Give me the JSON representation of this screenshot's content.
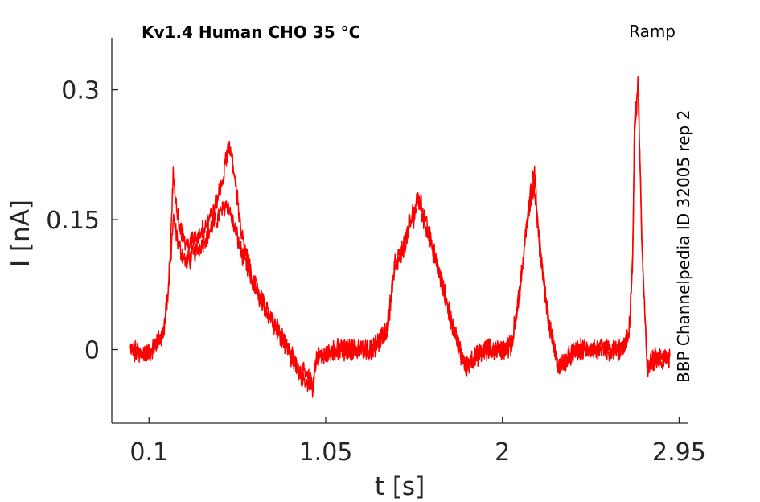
{
  "chart_data": {
    "type": "line",
    "title": "Kv1.4  Human  CHO  35 °C",
    "protocol_label": "Ramp",
    "side_label": "BBP Channelpedia ID 32005 rep 2",
    "xlabel": "t [s]",
    "ylabel": "I [nA]",
    "xlim": [
      -0.1,
      3.0
    ],
    "ylim": [
      -0.085,
      0.36
    ],
    "x_ticks": [
      0.1,
      1.05,
      2,
      2.95
    ],
    "x_tick_labels": [
      "0.1",
      "1.05",
      "2",
      "2.95"
    ],
    "y_ticks": [
      0,
      0.15,
      0.3
    ],
    "y_tick_labels": [
      "0",
      "0.15",
      "0.3"
    ],
    "grid": false,
    "line_color": "#ff0000",
    "series": [
      {
        "x": [
          0.0,
          0.1,
          0.18,
          0.21,
          0.23,
          0.26,
          0.3,
          0.36,
          0.45,
          0.52,
          0.56,
          0.6,
          0.65,
          0.72,
          0.8,
          0.9,
          0.98,
          1.0,
          1.1,
          1.2,
          1.3,
          1.38,
          1.42,
          1.46,
          1.5,
          1.55,
          1.6,
          1.68,
          1.74,
          1.8,
          1.9,
          2.0,
          2.05,
          2.1,
          2.14,
          2.17,
          2.2,
          2.25,
          2.3,
          2.4,
          2.5,
          2.6,
          2.65,
          2.68,
          2.7,
          2.71,
          2.73,
          2.75,
          2.78,
          2.82,
          2.9
        ],
        "y": [
          0.0,
          -0.005,
          0.02,
          0.08,
          0.15,
          0.12,
          0.1,
          0.115,
          0.145,
          0.17,
          0.14,
          0.11,
          0.08,
          0.05,
          0.02,
          -0.02,
          -0.04,
          -0.01,
          0.0,
          0.0,
          0.0,
          0.02,
          0.09,
          0.11,
          0.14,
          0.17,
          0.135,
          0.07,
          0.02,
          -0.02,
          0.0,
          0.0,
          0.005,
          0.08,
          0.16,
          0.19,
          0.12,
          0.03,
          -0.02,
          0.0,
          0.0,
          0.0,
          0.0,
          0.015,
          0.1,
          0.25,
          0.3,
          0.12,
          -0.02,
          -0.01,
          -0.01
        ]
      },
      {
        "x": [
          0.0,
          0.1,
          0.18,
          0.21,
          0.23,
          0.26,
          0.3,
          0.36,
          0.45,
          0.5,
          0.53,
          0.56,
          0.6,
          0.65,
          0.72,
          0.8,
          0.9,
          0.98,
          1.0,
          1.1,
          1.2,
          1.3,
          1.38,
          1.42,
          1.46,
          1.5,
          1.55,
          1.6,
          1.68,
          1.74,
          1.8,
          1.9,
          2.0,
          2.05,
          2.1,
          2.14,
          2.17,
          2.2,
          2.25,
          2.3,
          2.4,
          2.5,
          2.6,
          2.65,
          2.68,
          2.7,
          2.71,
          2.73,
          2.75,
          2.78,
          2.82,
          2.9
        ],
        "y": [
          0.0,
          -0.005,
          0.02,
          0.09,
          0.2,
          0.15,
          0.12,
          0.13,
          0.16,
          0.2,
          0.24,
          0.2,
          0.13,
          0.085,
          0.05,
          0.02,
          -0.025,
          -0.045,
          -0.01,
          0.0,
          0.0,
          0.0,
          0.025,
          0.095,
          0.115,
          0.145,
          0.18,
          0.14,
          0.075,
          0.02,
          -0.02,
          0.0,
          0.0,
          0.005,
          0.08,
          0.16,
          0.21,
          0.12,
          0.03,
          -0.02,
          0.0,
          0.0,
          0.0,
          0.0,
          0.015,
          0.1,
          0.26,
          0.31,
          0.12,
          -0.025,
          -0.01,
          -0.01
        ]
      }
    ]
  }
}
